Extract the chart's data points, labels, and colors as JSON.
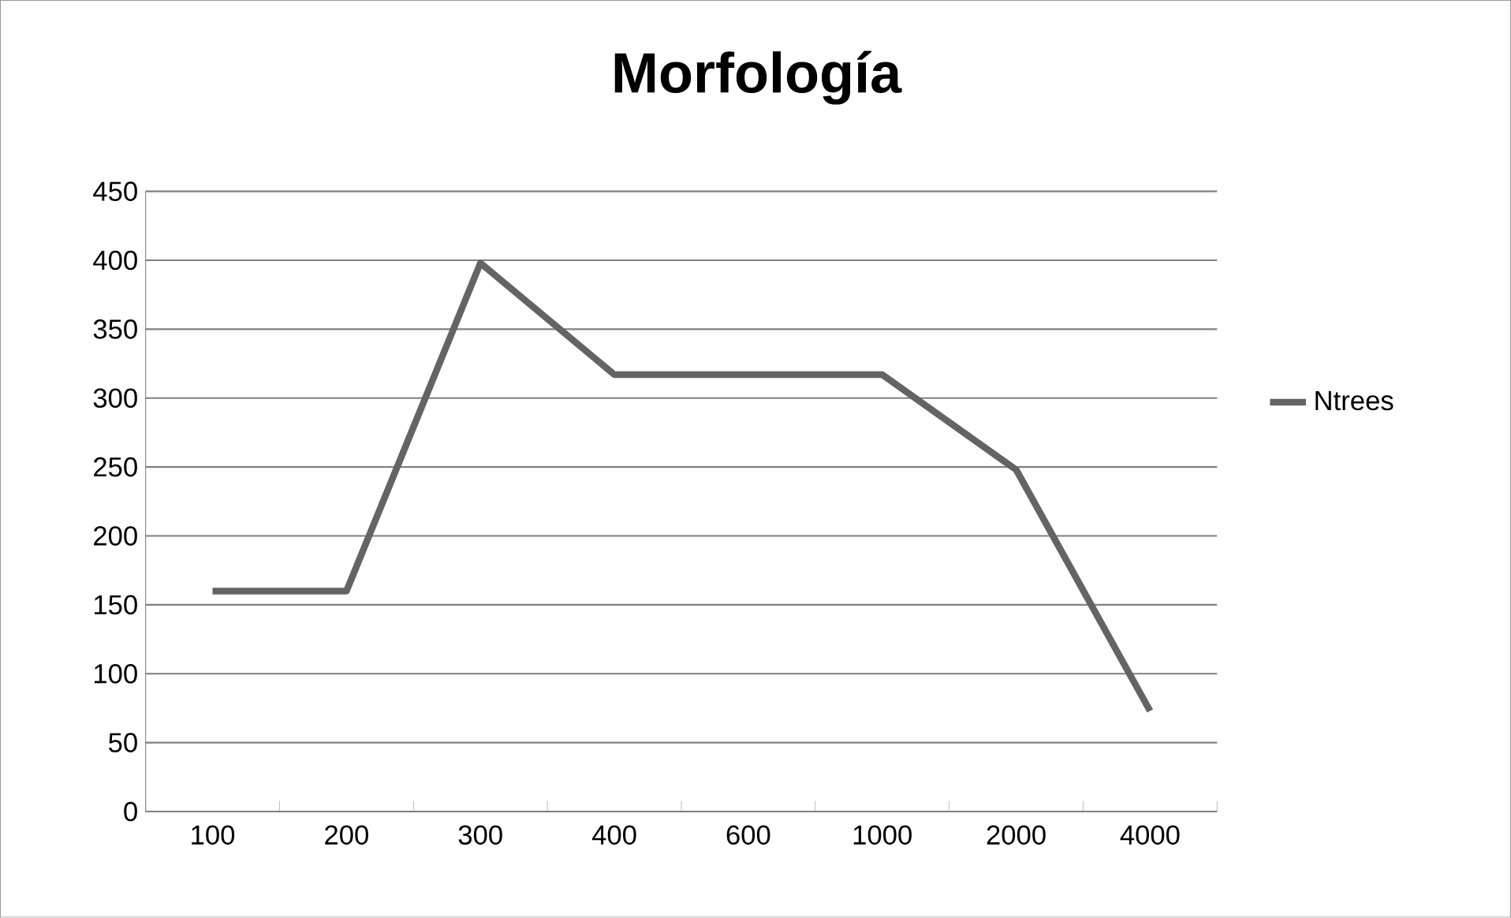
{
  "chart_data": {
    "type": "line",
    "title": "Morfología",
    "categories": [
      "100",
      "200",
      "300",
      "400",
      "600",
      "1000",
      "2000",
      "4000"
    ],
    "series": [
      {
        "name": "Ntrees",
        "color": "#646464",
        "values": [
          160,
          160,
          398,
          317,
          317,
          317,
          248,
          73
        ]
      }
    ],
    "ylim": [
      0,
      450
    ],
    "yticks": [
      0,
      50,
      100,
      150,
      200,
      250,
      300,
      350,
      400,
      450
    ],
    "grid": "y",
    "legend": "right",
    "marker": "none",
    "line_style": "solid"
  }
}
